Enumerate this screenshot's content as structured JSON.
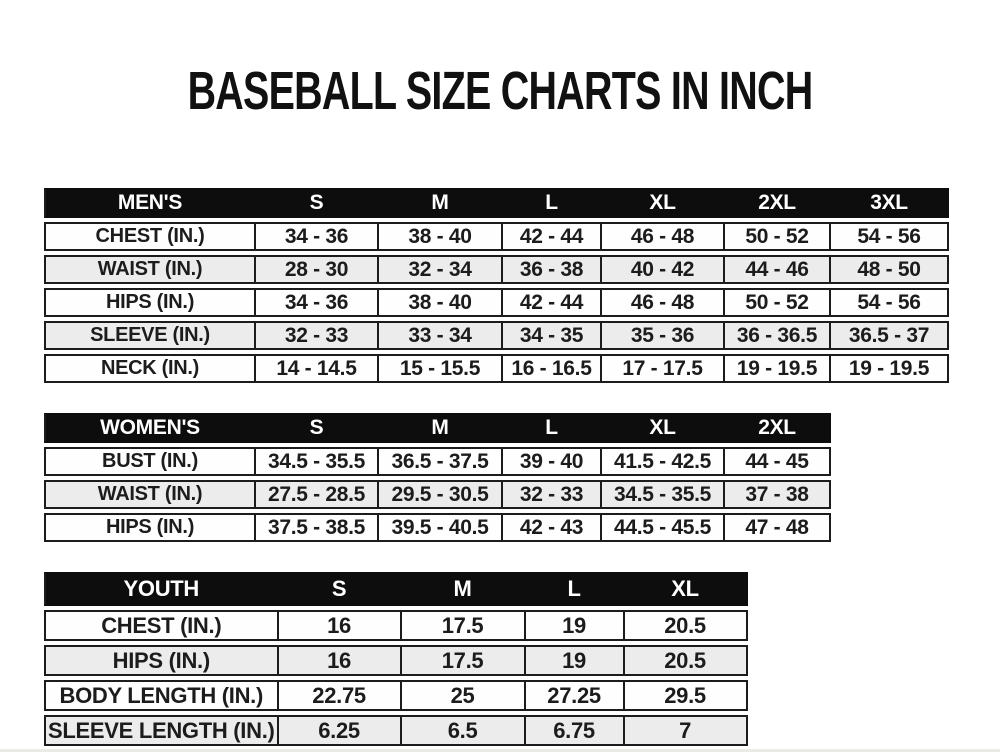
{
  "title": "BASEBALL SIZE CHARTS IN INCH",
  "colors": {
    "page_bg": "#ffffff",
    "header_bg": "#0d0d0d",
    "header_text": "#ffffff",
    "row_bg": "#fefefe",
    "row_alt_bg": "#ececec",
    "border": "#1c1c1c",
    "text": "#1c1c1c"
  },
  "tables": [
    {
      "name": "MEN'S",
      "columns": [
        "S",
        "M",
        "L",
        "XL",
        "2XL",
        "3XL"
      ],
      "rows": [
        {
          "label": "CHEST (IN.)",
          "values": [
            "34 - 36",
            "38 - 40",
            "42 - 44",
            "46 - 48",
            "50 - 52",
            "54 - 56"
          ]
        },
        {
          "label": "WAIST (IN.)",
          "values": [
            "28 - 30",
            "32 - 34",
            "36 - 38",
            "40 - 42",
            "44 - 46",
            "48 - 50"
          ]
        },
        {
          "label": "HIPS (IN.)",
          "values": [
            "34 - 36",
            "38 - 40",
            "42 - 44",
            "46 - 48",
            "50 - 52",
            "54 - 56"
          ]
        },
        {
          "label": "SLEEVE (IN.)",
          "values": [
            "32 - 33",
            "33 - 34",
            "34 - 35",
            "35 - 36",
            "36 - 36.5",
            "36.5 - 37"
          ]
        },
        {
          "label": "NECK (IN.)",
          "values": [
            "14 - 14.5",
            "15 - 15.5",
            "16 - 16.5",
            "17 - 17.5",
            "19 - 19.5",
            "19 - 19.5"
          ]
        }
      ]
    },
    {
      "name": "WOMEN'S",
      "columns": [
        "S",
        "M",
        "L",
        "XL",
        "2XL"
      ],
      "rows": [
        {
          "label": "BUST (IN.)",
          "values": [
            "34.5 - 35.5",
            "36.5 - 37.5",
            "39 - 40",
            "41.5 - 42.5",
            "44 - 45"
          ]
        },
        {
          "label": "WAIST (IN.)",
          "values": [
            "27.5 - 28.5",
            "29.5 - 30.5",
            "32 - 33",
            "34.5 - 35.5",
            "37 - 38"
          ]
        },
        {
          "label": "HIPS (IN.)",
          "values": [
            "37.5 - 38.5",
            "39.5 - 40.5",
            "42 - 43",
            "44.5 - 45.5",
            "47 - 48"
          ]
        }
      ]
    },
    {
      "name": "YOUTH",
      "columns": [
        "S",
        "M",
        "L",
        "XL"
      ],
      "rows": [
        {
          "label": "CHEST (IN.)",
          "values": [
            "16",
            "17.5",
            "19",
            "20.5"
          ]
        },
        {
          "label": "HIPS (IN.)",
          "values": [
            "16",
            "17.5",
            "19",
            "20.5"
          ]
        },
        {
          "label": "BODY LENGTH (IN.)",
          "values": [
            "22.75",
            "25",
            "27.25",
            "29.5"
          ]
        },
        {
          "label": "SLEEVE LENGTH (IN.)",
          "values": [
            "6.25",
            "6.5",
            "6.75",
            "7"
          ]
        }
      ]
    }
  ]
}
